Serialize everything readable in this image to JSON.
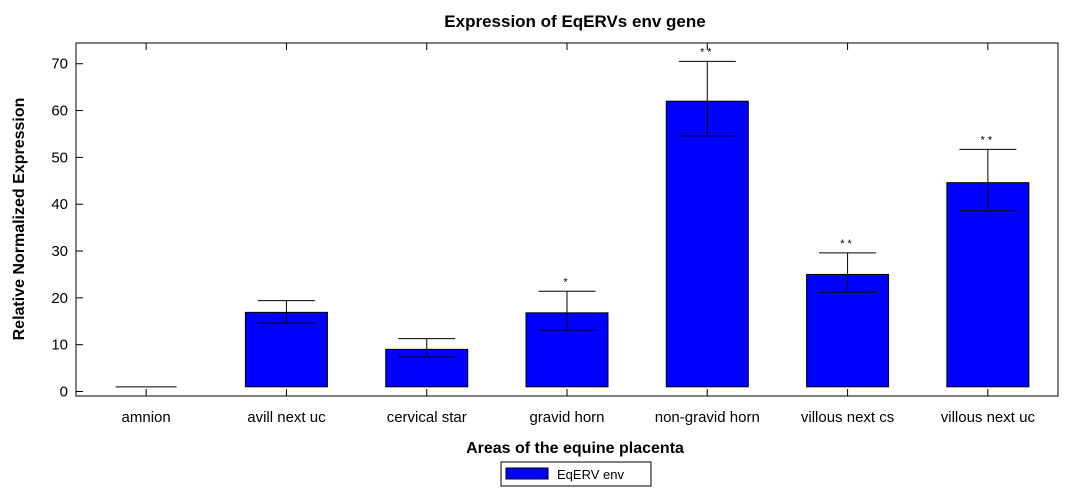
{
  "chart_data": {
    "type": "bar",
    "title": "Expression of EqERVs env gene",
    "xlabel": "Areas of the equine placenta",
    "ylabel": "Relative Normalized Expression",
    "ylim": [
      0,
      74
    ],
    "yticks": [
      0,
      10,
      20,
      30,
      40,
      50,
      60,
      70
    ],
    "baseline": 1,
    "categories": [
      "amnion",
      "avill next uc",
      "cervical star",
      "gravid horn",
      "non-gravid horn",
      "villous next cs",
      "villous next uc"
    ],
    "series": [
      {
        "name": "EqERV env",
        "color": "#0000ff",
        "values": [
          1,
          16.9,
          9.0,
          16.8,
          62.0,
          25.0,
          44.6
        ],
        "error_upper": [
          1,
          19.4,
          11.3,
          21.4,
          70.5,
          29.6,
          51.7
        ],
        "error_lower": [
          1,
          14.6,
          7.4,
          13.1,
          54.6,
          21.2,
          38.6
        ],
        "significance": [
          "",
          "",
          "",
          "*",
          "**",
          "**",
          "**"
        ]
      }
    ],
    "grid": false,
    "legend_position": "bottom-center"
  }
}
